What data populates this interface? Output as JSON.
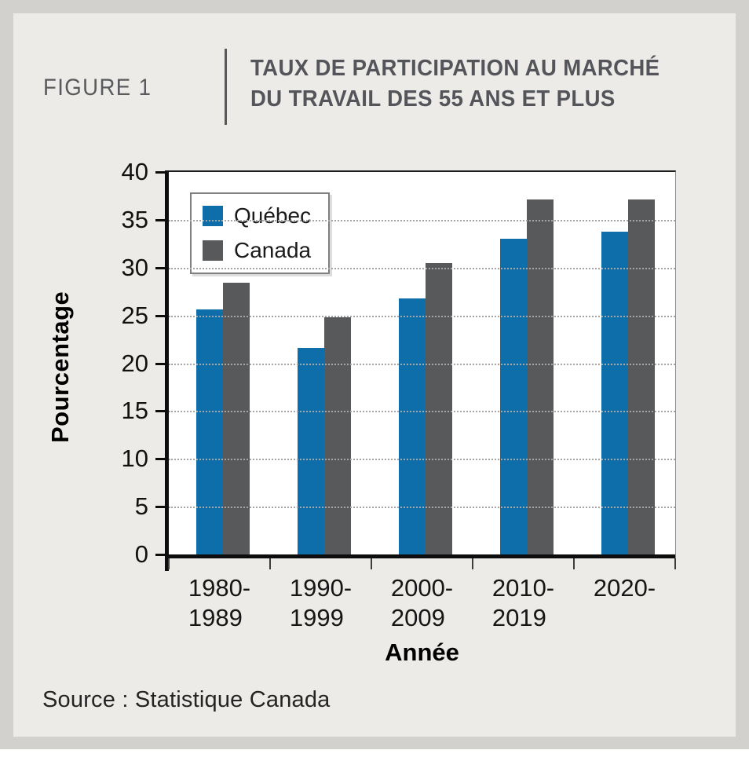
{
  "figure": {
    "label": "FIGURE 1",
    "title_line1": "TAUX DE PARTICIPATION AU MARCHÉ",
    "title_line2": "DU TRAVAIL DES 55 ANS ET PLUS",
    "source": "Source : Statistique Canada"
  },
  "chart_data": {
    "type": "bar",
    "categories": [
      "1980-\n1989",
      "1990-\n1999",
      "2000-\n2009",
      "2010-\n2019",
      "2020-"
    ],
    "series": [
      {
        "name": "Québec",
        "color": "#0E6EA9",
        "values": [
          25.6,
          21.6,
          26.8,
          33.0,
          33.8
        ]
      },
      {
        "name": "Canada",
        "color": "#58595B",
        "values": [
          28.4,
          24.8,
          30.5,
          37.1,
          37.1
        ]
      }
    ],
    "title": "Taux de participation au marché du travail des 55 ans et plus",
    "xlabel": "Année",
    "ylabel": "Pourcentage",
    "ylim": [
      0,
      40
    ],
    "ytick_step": 5,
    "grid": "horizontal-dotted",
    "legend_position": "top-left"
  },
  "colors": {
    "frame": "#D2D1CD",
    "panel": "#ECEBE7",
    "plot_background": "#FFFFFF",
    "quebec_blue": "#0E6EA9",
    "canada_gray": "#58595B",
    "header_text": "#54555A",
    "gridline": "#A6A6A6"
  }
}
